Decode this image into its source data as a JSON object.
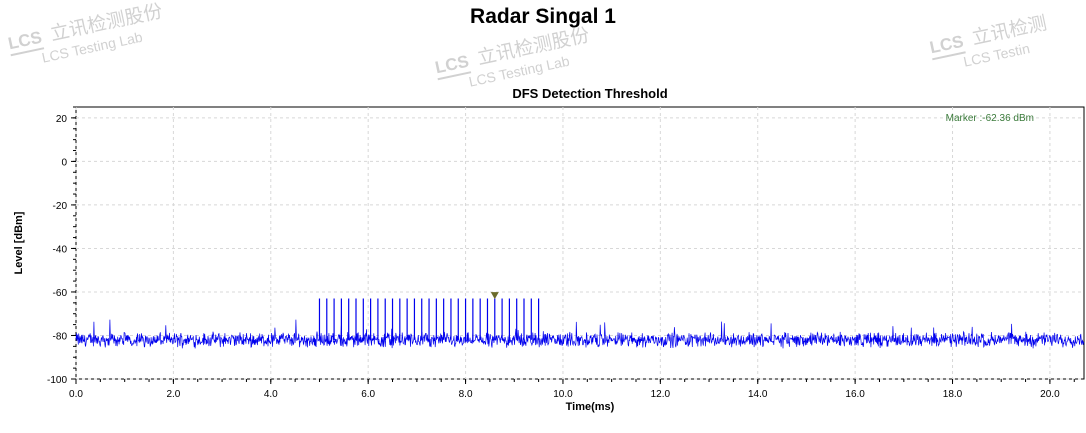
{
  "page": {
    "title": "Radar Singal 1"
  },
  "watermarks": [
    {
      "logo": "LCS",
      "text1": "立讯检测股份",
      "text2": "LCS Testing Lab"
    },
    {
      "logo": "LCS",
      "text1": "立讯检测股份",
      "text2": "LCS Testing Lab"
    },
    {
      "logo": "LCS",
      "text1": "立讯检测",
      "text2": "LCS Testin"
    }
  ],
  "chart_data": {
    "type": "line",
    "title": "DFS Detection Threshold",
    "xlabel": "Time(ms)",
    "ylabel": "Level [dBm]",
    "xlim": [
      0,
      20.7
    ],
    "ylim": [
      -100,
      25
    ],
    "x_ticks": [
      0,
      2,
      4,
      6,
      8,
      10,
      12,
      14,
      16,
      18,
      20
    ],
    "x_tick_labels": [
      "0.0",
      "2.0",
      "4.0",
      "6.0",
      "8.0",
      "10.0",
      "12.0",
      "14.0",
      "16.0",
      "18.0",
      "20.0"
    ],
    "y_ticks": [
      -100,
      -80,
      -60,
      -40,
      -20,
      0,
      20
    ],
    "y_tick_labels": [
      "-100",
      "-80",
      "-60",
      "-40",
      "-20",
      "0",
      "20"
    ],
    "grid": true,
    "marker": {
      "label": "Marker :-62.36 dBm",
      "x": 8.6,
      "y": -62.36
    },
    "noise_floor_dbm": -82,
    "series": [
      {
        "color": "#0000ee",
        "pulses": {
          "x": [
            5.0,
            5.15,
            5.3,
            5.45,
            5.6,
            5.75,
            5.9,
            6.05,
            6.2,
            6.35,
            6.5,
            6.65,
            6.8,
            6.95,
            7.1,
            7.25,
            7.4,
            7.55,
            7.7,
            7.85,
            8.0,
            8.15,
            8.3,
            8.45,
            8.6,
            8.75,
            8.9,
            9.05,
            9.2,
            9.35,
            9.5
          ],
          "level_dbm": -63
        }
      }
    ]
  }
}
